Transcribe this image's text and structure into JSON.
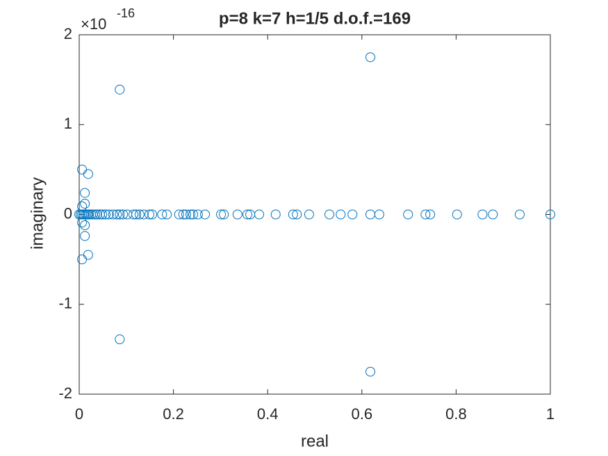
{
  "chart_data": {
    "type": "scatter",
    "title": "p=8 k=7 h=1/5 d.o.f.=169",
    "xlabel": "real",
    "ylabel": "imaginary",
    "y_multiplier": {
      "base": "×10",
      "exponent": "-16"
    },
    "xlim": [
      0,
      1
    ],
    "xticks": [
      0,
      0.2,
      0.4,
      0.6,
      0.8,
      1
    ],
    "ylim": [
      -2,
      2
    ],
    "yticks": [
      -2,
      -1,
      0,
      1,
      2
    ],
    "grid": false,
    "series": [
      {
        "color": "#0072bd",
        "x": [
          0,
          0.003,
          0.006,
          0.009,
          0.012,
          0.015,
          0.018,
          0.021,
          0.025,
          0.029,
          0.034,
          0.038,
          0.044,
          0.049,
          0.056,
          0.063,
          0.072,
          0.08,
          0.086,
          0.093,
          0.102,
          0.115,
          0.121,
          0.128,
          0.137,
          0.149,
          0.155,
          0.176,
          0.186,
          0.212,
          0.221,
          0.227,
          0.236,
          0.242,
          0.252,
          0.267,
          0.301,
          0.307,
          0.336,
          0.357,
          0.363,
          0.382,
          0.417,
          0.454,
          0.462,
          0.488,
          0.531,
          0.555,
          0.58,
          0.618,
          0.637,
          0.698,
          0.735,
          0.745,
          0.802,
          0.856,
          0.878,
          0.935,
          1,
          0.006,
          0.006,
          0.019,
          0.019,
          0.012,
          0.012,
          0.006,
          0.006,
          0.012,
          0.012,
          0.086,
          0.086,
          0.618,
          0.618
        ],
        "y": [
          0,
          0,
          0,
          0,
          0,
          0,
          0,
          0,
          0,
          0,
          0,
          0,
          0,
          0,
          0,
          0,
          0,
          0,
          0,
          0,
          0,
          0,
          0,
          0,
          0,
          0,
          0,
          0,
          0,
          0,
          0,
          0,
          0,
          0,
          0,
          0,
          0,
          0,
          0,
          0,
          0,
          0,
          0,
          0,
          0,
          0,
          0,
          0,
          0,
          0,
          0,
          0,
          0,
          0,
          0,
          0,
          0,
          0,
          0,
          0.5,
          -0.5,
          0.45,
          -0.45,
          0.24,
          -0.24,
          0.09,
          -0.09,
          0.12,
          -0.12,
          1.39,
          -1.39,
          1.75,
          -1.75
        ]
      }
    ]
  }
}
